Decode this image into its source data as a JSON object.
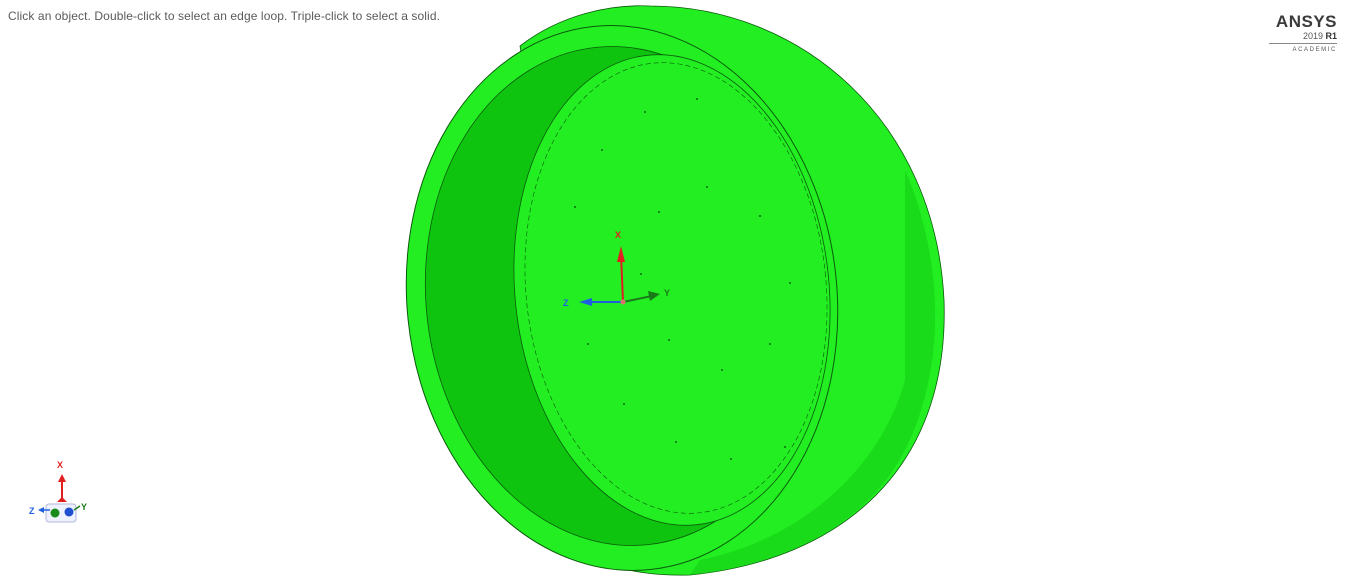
{
  "viewport": {
    "hint_text": "Click an object. Double-click to select an edge loop. Triple-click to select a solid."
  },
  "logo": {
    "brand": "ANSYS",
    "version": "2019",
    "release": "R1",
    "edition": "ACADEMIC"
  },
  "model": {
    "part_color": "#22ee22",
    "shade_color": "#11c611",
    "edge_color": "#0a5a0a"
  },
  "coordinate_system": {
    "x_label": "X",
    "y_label": "Y",
    "z_label": "Z",
    "x_color": "#e02020",
    "y_color": "#1a7a1a",
    "z_color": "#2060e0"
  },
  "triad": {
    "x_label": "X",
    "y_label": "Y",
    "z_label": "Z"
  }
}
